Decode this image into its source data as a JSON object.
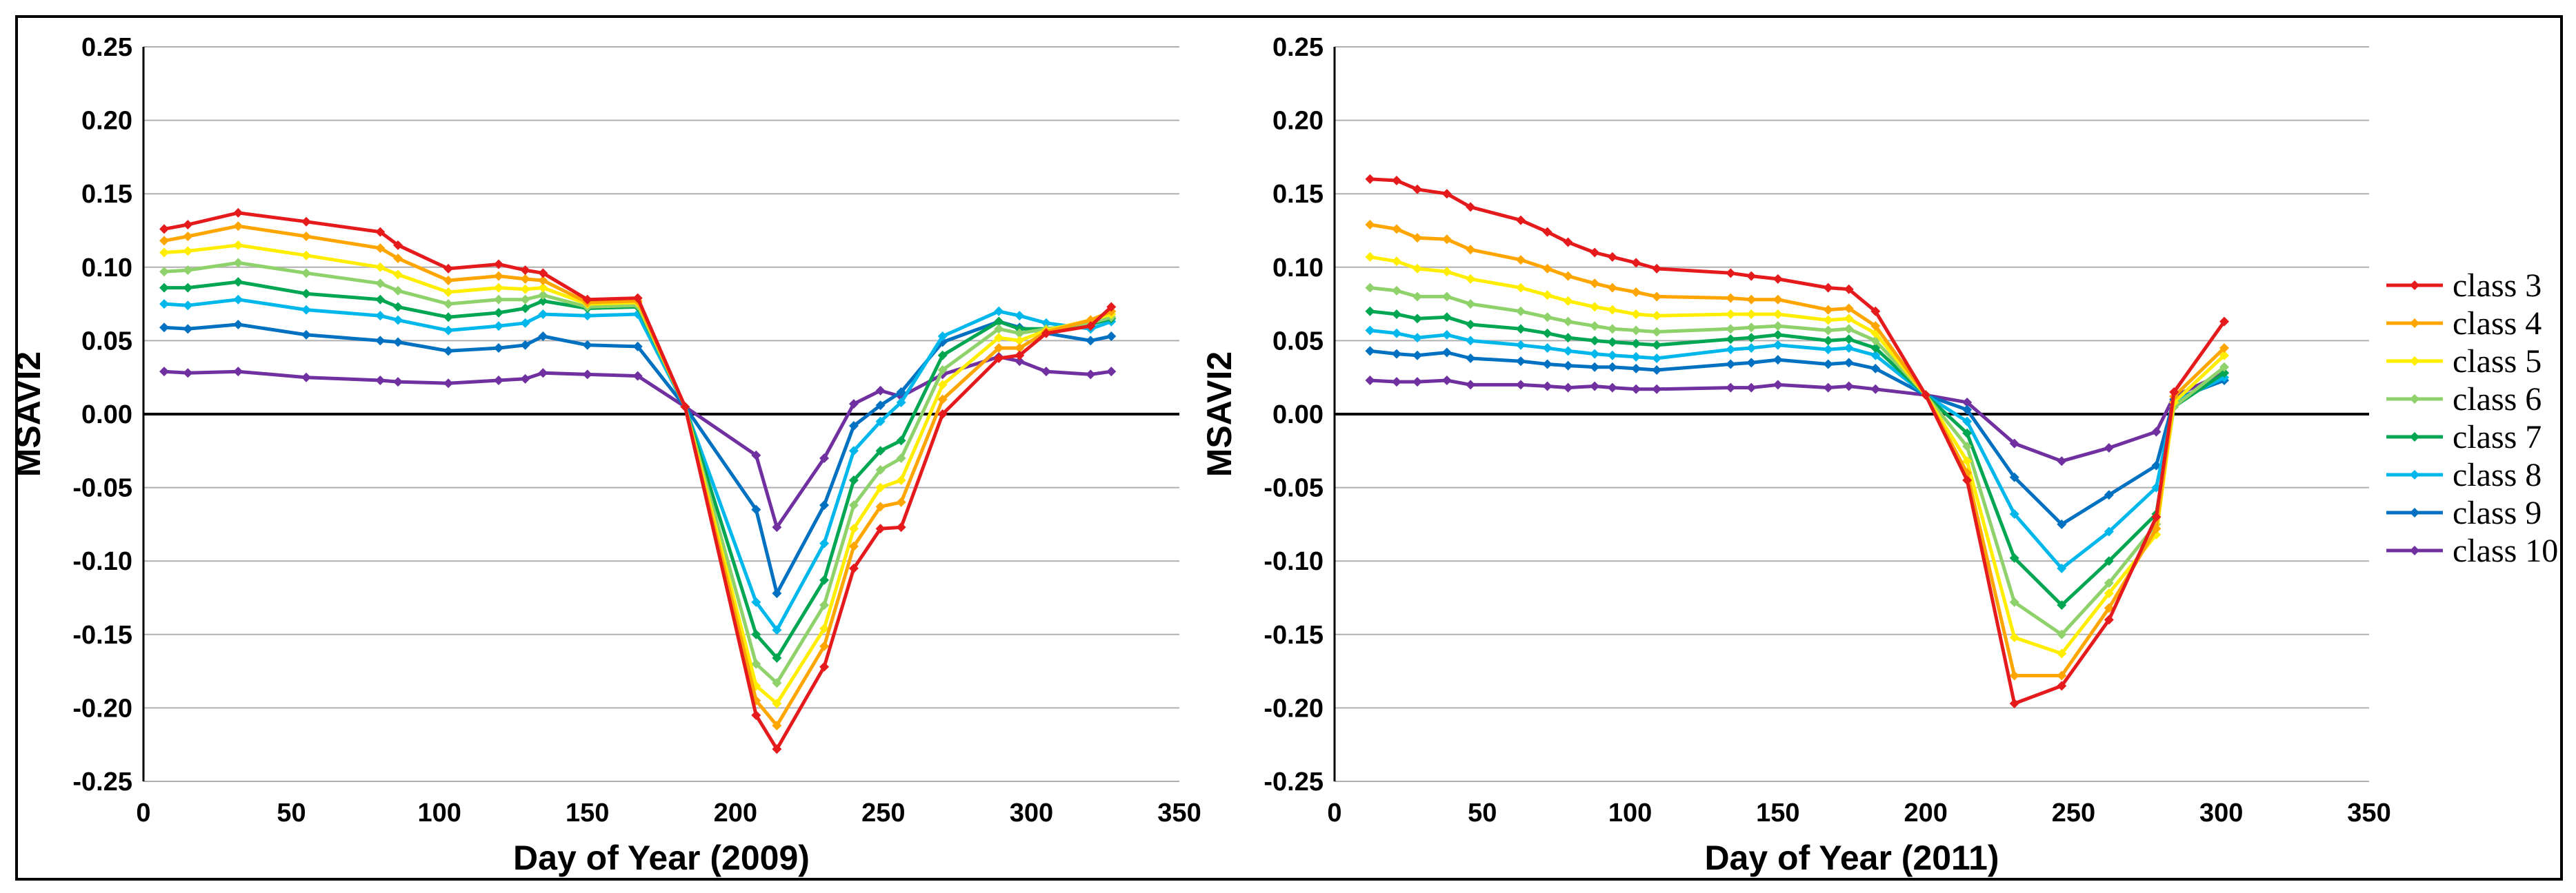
{
  "chart_data": {
    "type": "line",
    "legend": {
      "placement": "right",
      "entries": [
        "class 3",
        "class 4",
        "class 5",
        "class 6",
        "class 7",
        "class 8",
        "class 9",
        "class 10"
      ]
    },
    "colors": {
      "class 3": "#e41a1c",
      "class 4": "#ffa500",
      "class 5": "#ffee00",
      "class 6": "#8fd16a",
      "class 7": "#00a651",
      "class 8": "#00b7eb",
      "class 9": "#0070c0",
      "class 10": "#7030a0"
    },
    "charts": [
      {
        "xlabel": "Day of Year (2009)",
        "ylabel": "MSAVI2",
        "xlim": [
          0,
          350
        ],
        "ylim": [
          -0.25,
          0.25
        ],
        "xticks": [
          "0",
          "50",
          "100",
          "150",
          "200",
          "250",
          "300",
          "350"
        ],
        "yticks": [
          "0.25",
          "0.20",
          "0.15",
          "0.10",
          "0.05",
          "0.00",
          "-0.05",
          "-0.10",
          "-0.15",
          "-0.20",
          "-0.25"
        ],
        "grid": true,
        "series": [
          {
            "name": "class 3",
            "x": [
              7,
              15,
              32,
              55,
              80,
              86,
              103,
              120,
              129,
              135,
              150,
              167,
              183,
              207,
              214,
              230,
              240,
              249,
              256,
              270,
              289,
              296,
              305,
              320,
              327
            ],
            "y": [
              0.126,
              0.129,
              0.137,
              0.131,
              0.124,
              0.115,
              0.099,
              0.102,
              0.098,
              0.096,
              0.078,
              0.079,
              0.005,
              -0.205,
              -0.228,
              -0.172,
              -0.105,
              -0.078,
              -0.077,
              0.0,
              0.038,
              0.04,
              0.055,
              0.06,
              0.073
            ]
          },
          {
            "name": "class 4",
            "x": [
              7,
              15,
              32,
              55,
              80,
              86,
              103,
              120,
              129,
              135,
              150,
              167,
              183,
              207,
              214,
              230,
              240,
              249,
              256,
              270,
              289,
              296,
              305,
              320,
              327
            ],
            "y": [
              0.118,
              0.121,
              0.128,
              0.121,
              0.113,
              0.106,
              0.091,
              0.094,
              0.092,
              0.091,
              0.076,
              0.077,
              0.005,
              -0.195,
              -0.212,
              -0.158,
              -0.09,
              -0.063,
              -0.06,
              0.01,
              0.045,
              0.045,
              0.056,
              0.064,
              0.07
            ]
          },
          {
            "name": "class 5",
            "x": [
              7,
              15,
              32,
              55,
              80,
              86,
              103,
              120,
              129,
              135,
              150,
              167,
              183,
              207,
              214,
              230,
              240,
              249,
              256,
              270,
              289,
              296,
              305,
              320,
              327
            ],
            "y": [
              0.11,
              0.111,
              0.115,
              0.108,
              0.1,
              0.095,
              0.083,
              0.086,
              0.085,
              0.086,
              0.075,
              0.076,
              0.005,
              -0.185,
              -0.197,
              -0.146,
              -0.078,
              -0.05,
              -0.045,
              0.02,
              0.052,
              0.05,
              0.057,
              0.064,
              0.068
            ]
          },
          {
            "name": "class 6",
            "x": [
              7,
              15,
              32,
              55,
              80,
              86,
              103,
              120,
              129,
              135,
              150,
              167,
              183,
              207,
              214,
              230,
              240,
              249,
              256,
              270,
              289,
              296,
              305,
              320,
              327
            ],
            "y": [
              0.097,
              0.098,
              0.103,
              0.096,
              0.089,
              0.084,
              0.075,
              0.078,
              0.078,
              0.081,
              0.073,
              0.074,
              0.005,
              -0.17,
              -0.183,
              -0.13,
              -0.062,
              -0.038,
              -0.03,
              0.03,
              0.058,
              0.055,
              0.058,
              0.062,
              0.066
            ]
          },
          {
            "name": "class 7",
            "x": [
              7,
              15,
              32,
              55,
              80,
              86,
              103,
              120,
              129,
              135,
              150,
              167,
              183,
              207,
              214,
              230,
              240,
              249,
              256,
              270,
              289,
              296,
              305,
              320,
              327
            ],
            "y": [
              0.086,
              0.086,
              0.09,
              0.082,
              0.078,
              0.073,
              0.066,
              0.069,
              0.072,
              0.077,
              0.072,
              0.073,
              0.005,
              -0.15,
              -0.166,
              -0.113,
              -0.045,
              -0.025,
              -0.018,
              0.04,
              0.063,
              0.058,
              0.058,
              0.061,
              0.065
            ]
          },
          {
            "name": "class 8",
            "x": [
              7,
              15,
              32,
              55,
              80,
              86,
              103,
              120,
              129,
              135,
              150,
              167,
              183,
              207,
              214,
              230,
              240,
              249,
              256,
              270,
              289,
              296,
              305,
              320,
              327
            ],
            "y": [
              0.075,
              0.074,
              0.078,
              0.071,
              0.067,
              0.064,
              0.057,
              0.06,
              0.062,
              0.068,
              0.067,
              0.068,
              0.005,
              -0.128,
              -0.147,
              -0.088,
              -0.025,
              -0.005,
              0.008,
              0.053,
              0.07,
              0.067,
              0.062,
              0.058,
              0.063
            ]
          },
          {
            "name": "class 9",
            "x": [
              7,
              15,
              32,
              55,
              80,
              86,
              103,
              120,
              129,
              135,
              150,
              167,
              183,
              207,
              214,
              230,
              240,
              249,
              256,
              270,
              289,
              296,
              305,
              320,
              327
            ],
            "y": [
              0.059,
              0.058,
              0.061,
              0.054,
              0.05,
              0.049,
              0.043,
              0.045,
              0.047,
              0.053,
              0.047,
              0.046,
              0.005,
              -0.065,
              -0.122,
              -0.062,
              -0.008,
              0.006,
              0.015,
              0.049,
              0.063,
              0.059,
              0.055,
              0.05,
              0.053
            ]
          },
          {
            "name": "class 10",
            "x": [
              7,
              15,
              32,
              55,
              80,
              86,
              103,
              120,
              129,
              135,
              150,
              167,
              183,
              207,
              214,
              230,
              240,
              249,
              256,
              270,
              289,
              296,
              305,
              320,
              327
            ],
            "y": [
              0.029,
              0.028,
              0.029,
              0.025,
              0.023,
              0.022,
              0.021,
              0.023,
              0.024,
              0.028,
              0.027,
              0.026,
              0.005,
              -0.028,
              -0.077,
              -0.03,
              0.007,
              0.016,
              0.012,
              0.027,
              0.039,
              0.036,
              0.029,
              0.027,
              0.029
            ]
          }
        ]
      },
      {
        "xlabel": "Day of Year (2011)",
        "ylabel": "MSAVI2",
        "xlim": [
          0,
          350
        ],
        "ylim": [
          -0.25,
          0.25
        ],
        "xticks": [
          "0",
          "50",
          "100",
          "150",
          "200",
          "250",
          "300",
          "350"
        ],
        "yticks": [
          "0.25",
          "0.20",
          "0.15",
          "0.10",
          "0.05",
          "0.00",
          "-0.05",
          "-0.10",
          "-0.15",
          "-0.20",
          "-0.25"
        ],
        "grid": true,
        "series": [
          {
            "name": "class 3",
            "x": [
              12,
              21,
              28,
              38,
              46,
              63,
              72,
              79,
              88,
              94,
              102,
              109,
              134,
              141,
              150,
              167,
              174,
              183,
              200,
              214,
              230,
              246,
              262,
              278,
              284,
              301
            ],
            "y": [
              0.16,
              0.159,
              0.153,
              0.15,
              0.141,
              0.132,
              0.124,
              0.117,
              0.11,
              0.107,
              0.103,
              0.099,
              0.096,
              0.094,
              0.092,
              0.086,
              0.085,
              0.07,
              0.013,
              -0.045,
              -0.197,
              -0.185,
              -0.14,
              -0.07,
              0.015,
              0.063
            ]
          },
          {
            "name": "class 4",
            "x": [
              12,
              21,
              28,
              38,
              46,
              63,
              72,
              79,
              88,
              94,
              102,
              109,
              134,
              141,
              150,
              167,
              174,
              183,
              200,
              214,
              230,
              246,
              262,
              278,
              284,
              301
            ],
            "y": [
              0.129,
              0.126,
              0.12,
              0.119,
              0.112,
              0.105,
              0.099,
              0.094,
              0.089,
              0.086,
              0.083,
              0.08,
              0.079,
              0.078,
              0.078,
              0.071,
              0.072,
              0.06,
              0.013,
              -0.04,
              -0.178,
              -0.178,
              -0.132,
              -0.078,
              0.012,
              0.045
            ]
          },
          {
            "name": "class 5",
            "x": [
              12,
              21,
              28,
              38,
              46,
              63,
              72,
              79,
              88,
              94,
              102,
              109,
              134,
              141,
              150,
              167,
              174,
              183,
              200,
              214,
              230,
              246,
              262,
              278,
              284,
              301
            ],
            "y": [
              0.107,
              0.104,
              0.099,
              0.097,
              0.092,
              0.086,
              0.081,
              0.077,
              0.073,
              0.071,
              0.068,
              0.067,
              0.068,
              0.068,
              0.068,
              0.064,
              0.065,
              0.055,
              0.013,
              -0.032,
              -0.152,
              -0.163,
              -0.122,
              -0.082,
              0.008,
              0.04
            ]
          },
          {
            "name": "class 6",
            "x": [
              12,
              21,
              28,
              38,
              46,
              63,
              72,
              79,
              88,
              94,
              102,
              109,
              134,
              141,
              150,
              167,
              174,
              183,
              200,
              214,
              230,
              246,
              262,
              278,
              284,
              301
            ],
            "y": [
              0.086,
              0.084,
              0.08,
              0.08,
              0.075,
              0.07,
              0.066,
              0.063,
              0.06,
              0.058,
              0.057,
              0.056,
              0.058,
              0.059,
              0.06,
              0.057,
              0.058,
              0.05,
              0.013,
              -0.022,
              -0.128,
              -0.15,
              -0.115,
              -0.075,
              0.005,
              0.032
            ]
          },
          {
            "name": "class 7",
            "x": [
              12,
              21,
              28,
              38,
              46,
              63,
              72,
              79,
              88,
              94,
              102,
              109,
              134,
              141,
              150,
              167,
              174,
              183,
              200,
              214,
              230,
              246,
              262,
              278,
              284,
              301
            ],
            "y": [
              0.07,
              0.068,
              0.065,
              0.066,
              0.061,
              0.058,
              0.055,
              0.052,
              0.05,
              0.049,
              0.048,
              0.047,
              0.051,
              0.052,
              0.054,
              0.05,
              0.051,
              0.045,
              0.013,
              -0.013,
              -0.098,
              -0.13,
              -0.1,
              -0.068,
              0.005,
              0.028
            ]
          },
          {
            "name": "class 8",
            "x": [
              12,
              21,
              28,
              38,
              46,
              63,
              72,
              79,
              88,
              94,
              102,
              109,
              134,
              141,
              150,
              167,
              174,
              183,
              200,
              214,
              230,
              246,
              262,
              278,
              284,
              301
            ],
            "y": [
              0.057,
              0.055,
              0.052,
              0.054,
              0.05,
              0.047,
              0.045,
              0.043,
              0.041,
              0.04,
              0.039,
              0.038,
              0.044,
              0.045,
              0.047,
              0.044,
              0.045,
              0.04,
              0.013,
              -0.005,
              -0.068,
              -0.105,
              -0.08,
              -0.05,
              0.008,
              0.025
            ]
          },
          {
            "name": "class 9",
            "x": [
              12,
              21,
              28,
              38,
              46,
              63,
              72,
              79,
              88,
              94,
              102,
              109,
              134,
              141,
              150,
              167,
              174,
              183,
              200,
              214,
              230,
              246,
              262,
              278,
              284,
              301
            ],
            "y": [
              0.043,
              0.041,
              0.04,
              0.042,
              0.038,
              0.036,
              0.034,
              0.033,
              0.032,
              0.032,
              0.031,
              0.03,
              0.034,
              0.035,
              0.037,
              0.034,
              0.035,
              0.031,
              0.013,
              0.003,
              -0.043,
              -0.075,
              -0.055,
              -0.035,
              0.01,
              0.023
            ]
          },
          {
            "name": "class 10",
            "x": [
              12,
              21,
              28,
              38,
              46,
              63,
              72,
              79,
              88,
              94,
              102,
              109,
              134,
              141,
              150,
              167,
              174,
              183,
              200,
              214,
              230,
              246,
              262,
              278,
              284,
              301
            ],
            "y": [
              0.023,
              0.022,
              0.022,
              0.023,
              0.02,
              0.02,
              0.019,
              0.018,
              0.019,
              0.018,
              0.017,
              0.017,
              0.018,
              0.018,
              0.02,
              0.018,
              0.019,
              0.017,
              0.013,
              0.008,
              -0.02,
              -0.032,
              -0.023,
              -0.012,
              0.012,
              0.028
            ]
          }
        ]
      }
    ]
  }
}
